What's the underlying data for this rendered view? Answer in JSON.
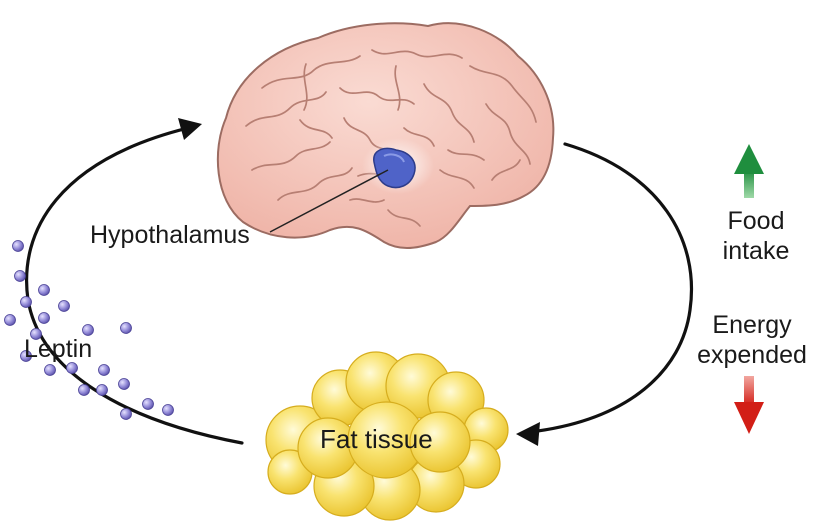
{
  "labels": {
    "hypothalamus": "Hypothalamus",
    "leptin": "Leptin",
    "fat_tissue": "Fat tissue",
    "food_intake": [
      "Food",
      "intake"
    ],
    "energy_expended": [
      "Energy",
      "expended"
    ]
  },
  "indicators": {
    "food_intake": {
      "direction": "up",
      "color": "#2a9a4a"
    },
    "energy_expended": {
      "direction": "down",
      "color": "#d8281e"
    }
  },
  "colors": {
    "brain": "#f2c1b6",
    "brain_outline": "#9c6c62",
    "hypothalamus": "#4f63c8",
    "fat": "#f7dc4c",
    "leptin_dot": "#8b84cf",
    "cycle_arrow": "#111111"
  }
}
